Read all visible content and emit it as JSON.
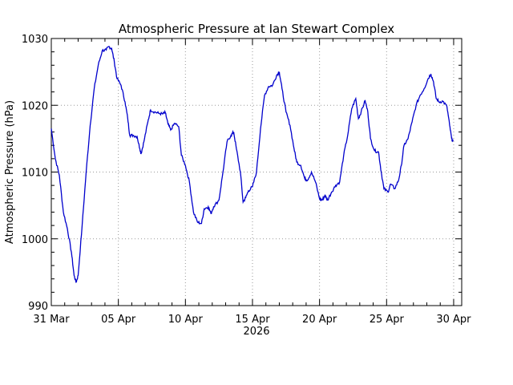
{
  "chart_data": {
    "type": "line",
    "title": "Atmospheric Pressure at Ian Stewart Complex",
    "ylabel": "Atmospheric Pressure (hPa)",
    "xlabel": "2026",
    "x_range_days": [
      0,
      30.6
    ],
    "ylim": [
      990,
      1030
    ],
    "yticks": [
      990,
      1000,
      1010,
      1020,
      1030
    ],
    "xticks": [
      {
        "day": 0,
        "label": "31 Mar"
      },
      {
        "day": 5,
        "label": "05 Apr"
      },
      {
        "day": 10,
        "label": "10 Apr"
      },
      {
        "day": 15,
        "label": "15 Apr"
      },
      {
        "day": 20,
        "label": "20 Apr"
      },
      {
        "day": 25,
        "label": "25 Apr"
      },
      {
        "day": 30,
        "label": "30 Apr"
      }
    ],
    "grid": true,
    "series_color": "#0000cc",
    "series": [
      {
        "points": [
          [
            0.0,
            1016.5
          ],
          [
            0.3,
            1012.0
          ],
          [
            0.6,
            1009.5
          ],
          [
            0.9,
            1004.0
          ],
          [
            1.2,
            1001.5
          ],
          [
            1.5,
            998.0
          ],
          [
            1.7,
            994.5
          ],
          [
            1.85,
            993.5
          ],
          [
            2.0,
            994.5
          ],
          [
            2.3,
            1002.0
          ],
          [
            2.6,
            1010.0
          ],
          [
            2.9,
            1017.0
          ],
          [
            3.2,
            1022.5
          ],
          [
            3.5,
            1026.0
          ],
          [
            3.8,
            1028.2
          ],
          [
            4.1,
            1028.3
          ],
          [
            4.3,
            1028.8
          ],
          [
            4.5,
            1028.5
          ],
          [
            4.7,
            1026.5
          ],
          [
            4.9,
            1024.0
          ],
          [
            5.2,
            1023.0
          ],
          [
            5.5,
            1020.5
          ],
          [
            5.7,
            1018.0
          ],
          [
            5.85,
            1015.5
          ],
          [
            6.1,
            1015.5
          ],
          [
            6.4,
            1015.3
          ],
          [
            6.6,
            1013.5
          ],
          [
            6.7,
            1012.8
          ],
          [
            6.9,
            1014.5
          ],
          [
            7.2,
            1017.5
          ],
          [
            7.4,
            1019.3
          ],
          [
            7.7,
            1019.0
          ],
          [
            8.0,
            1018.8
          ],
          [
            8.3,
            1018.7
          ],
          [
            8.5,
            1018.9
          ],
          [
            8.7,
            1017.2
          ],
          [
            8.9,
            1016.3
          ],
          [
            9.2,
            1017.3
          ],
          [
            9.5,
            1016.8
          ],
          [
            9.7,
            1012.5
          ],
          [
            10.0,
            1011.0
          ],
          [
            10.3,
            1008.5
          ],
          [
            10.6,
            1004.0
          ],
          [
            10.9,
            1002.5
          ],
          [
            11.2,
            1002.3
          ],
          [
            11.4,
            1004.5
          ],
          [
            11.7,
            1004.8
          ],
          [
            11.9,
            1003.8
          ],
          [
            12.1,
            1004.8
          ],
          [
            12.5,
            1005.8
          ],
          [
            12.8,
            1010.0
          ],
          [
            13.1,
            1014.5
          ],
          [
            13.4,
            1015.5
          ],
          [
            13.6,
            1016.0
          ],
          [
            13.8,
            1013.5
          ],
          [
            14.1,
            1010.0
          ],
          [
            14.3,
            1005.5
          ],
          [
            14.5,
            1006.2
          ],
          [
            14.7,
            1007.2
          ],
          [
            15.0,
            1007.8
          ],
          [
            15.3,
            1010.0
          ],
          [
            15.6,
            1016.5
          ],
          [
            15.9,
            1021.5
          ],
          [
            16.2,
            1022.8
          ],
          [
            16.5,
            1023.0
          ],
          [
            16.8,
            1024.5
          ],
          [
            17.0,
            1025.0
          ],
          [
            17.2,
            1022.5
          ],
          [
            17.5,
            1019.0
          ],
          [
            17.8,
            1017.0
          ],
          [
            18.1,
            1013.5
          ],
          [
            18.3,
            1011.5
          ],
          [
            18.6,
            1011.0
          ],
          [
            18.9,
            1009.0
          ],
          [
            19.1,
            1008.8
          ],
          [
            19.4,
            1010.0
          ],
          [
            19.7,
            1008.5
          ],
          [
            20.0,
            1006.0
          ],
          [
            20.2,
            1005.8
          ],
          [
            20.4,
            1006.5
          ],
          [
            20.6,
            1005.8
          ],
          [
            20.9,
            1007.0
          ],
          [
            21.2,
            1008.0
          ],
          [
            21.5,
            1008.5
          ],
          [
            21.8,
            1012.5
          ],
          [
            22.1,
            1015.5
          ],
          [
            22.4,
            1019.5
          ],
          [
            22.7,
            1021.0
          ],
          [
            22.9,
            1018.0
          ],
          [
            23.1,
            1019.0
          ],
          [
            23.4,
            1020.7
          ],
          [
            23.6,
            1019.0
          ],
          [
            23.8,
            1015.0
          ],
          [
            24.1,
            1013.2
          ],
          [
            24.4,
            1013.0
          ],
          [
            24.6,
            1010.0
          ],
          [
            24.8,
            1007.5
          ],
          [
            25.1,
            1007.0
          ],
          [
            25.3,
            1008.2
          ],
          [
            25.6,
            1007.5
          ],
          [
            25.9,
            1008.8
          ],
          [
            26.1,
            1011.0
          ],
          [
            26.3,
            1014.0
          ],
          [
            26.6,
            1015.0
          ],
          [
            26.9,
            1017.5
          ],
          [
            27.2,
            1020.0
          ],
          [
            27.5,
            1021.5
          ],
          [
            27.8,
            1022.5
          ],
          [
            28.1,
            1024.0
          ],
          [
            28.3,
            1024.7
          ],
          [
            28.5,
            1023.5
          ],
          [
            28.7,
            1021.0
          ],
          [
            28.9,
            1020.5
          ],
          [
            29.2,
            1020.6
          ],
          [
            29.5,
            1019.8
          ],
          [
            29.7,
            1017.0
          ],
          [
            29.85,
            1015.0
          ],
          [
            29.95,
            1014.6
          ]
        ]
      }
    ]
  }
}
